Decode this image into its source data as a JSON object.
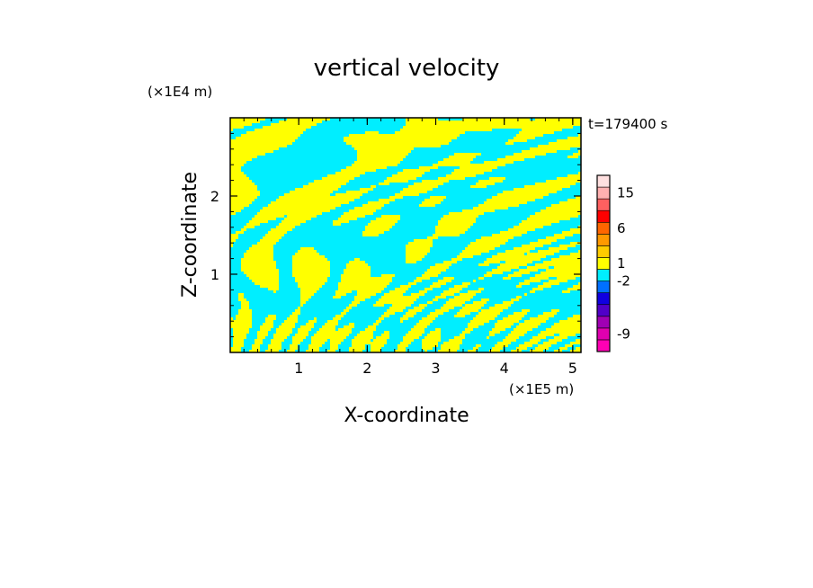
{
  "chart_data": {
    "type": "heatmap",
    "title": "vertical velocity",
    "xlabel": "X-coordinate",
    "ylabel": "Z-coordinate",
    "x_unit": "(×1E5 m)",
    "y_unit": "(×1E4 m)",
    "time_label": "t=179400 s",
    "xlim": [
      0,
      5.12
    ],
    "ylim": [
      0,
      3.0
    ],
    "x_ticks": [
      "1",
      "2",
      "3",
      "4",
      "5"
    ],
    "y_ticks": [
      "1",
      "2"
    ],
    "field_colors": [
      "#00eeff",
      "#ffff00"
    ],
    "colorbar": {
      "levels": [
        {
          "color": "#ff00b4"
        },
        {
          "color": "#e000b0"
        },
        {
          "color": "#a000b4"
        },
        {
          "color": "#5000c8"
        },
        {
          "color": "#1000e0"
        },
        {
          "color": "#0070ff"
        },
        {
          "color": "#00eeff"
        },
        {
          "color": "#ffff00"
        },
        {
          "color": "#ffcc00"
        },
        {
          "color": "#ff9900"
        },
        {
          "color": "#ff6600"
        },
        {
          "color": "#ff0000"
        },
        {
          "color": "#ff6060"
        },
        {
          "color": "#ffb0b0"
        },
        {
          "color": "#ffe0e0"
        }
      ],
      "labels": [
        {
          "value": "-9",
          "level": 1
        },
        {
          "value": "-2",
          "level": 5.5
        },
        {
          "value": "1",
          "level": 7
        },
        {
          "value": "6",
          "level": 10
        },
        {
          "value": "15",
          "level": 13
        }
      ]
    }
  }
}
